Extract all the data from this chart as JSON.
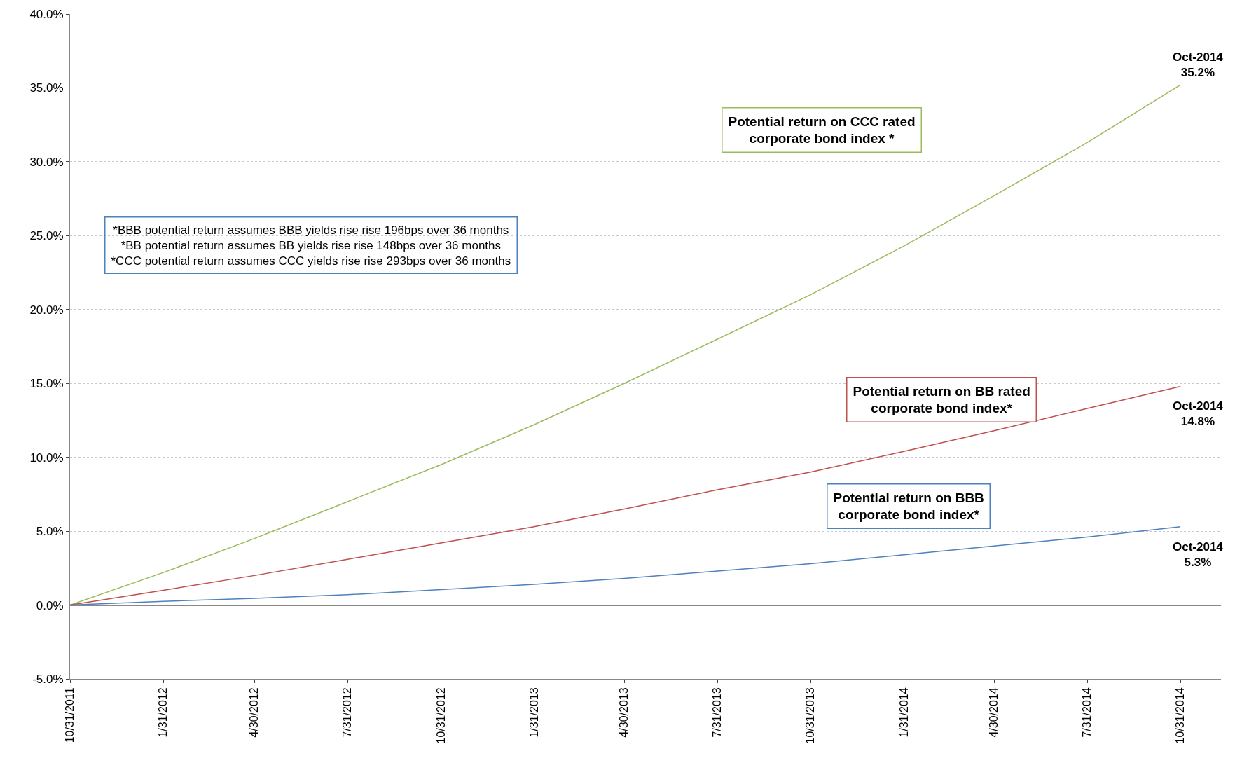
{
  "chart_data": {
    "type": "line",
    "x": [
      "2011-10-31",
      "2012-01-31",
      "2012-04-30",
      "2012-07-31",
      "2012-10-31",
      "2013-01-31",
      "2013-04-30",
      "2013-07-31",
      "2013-10-31",
      "2014-01-31",
      "2014-04-30",
      "2014-07-31",
      "2014-10-31"
    ],
    "series": [
      {
        "name": "Potential return on CCC rated\ncorporate bond index *",
        "color": "#9bbb59",
        "values": [
          0,
          2.2,
          4.5,
          7.0,
          9.5,
          12.2,
          15.0,
          18.0,
          21.0,
          24.3,
          27.7,
          31.3,
          35.2
        ]
      },
      {
        "name": "Potential return on BB rated\ncorporate bond index*",
        "color": "#c0504d",
        "values": [
          0,
          1.0,
          2.0,
          3.1,
          4.2,
          5.3,
          6.5,
          7.8,
          9.0,
          10.4,
          11.8,
          13.3,
          14.8
        ]
      },
      {
        "name": "Potential return on BBB\ncorporate bond index*",
        "color": "#4f81bd",
        "values": [
          0,
          0.25,
          0.45,
          0.7,
          1.05,
          1.4,
          1.8,
          2.3,
          2.8,
          3.4,
          4.0,
          4.6,
          5.3
        ]
      }
    ],
    "ylim": [
      -5,
      40
    ],
    "yticks": [
      {
        "value": -5,
        "label": "-5.0%"
      },
      {
        "value": 0,
        "label": "0.0%"
      },
      {
        "value": 5,
        "label": "5.0%"
      },
      {
        "value": 10,
        "label": "10.0%"
      },
      {
        "value": 15,
        "label": "15.0%"
      },
      {
        "value": 20,
        "label": "20.0%"
      },
      {
        "value": 25,
        "label": "25.0%"
      },
      {
        "value": 30,
        "label": "30.0%"
      },
      {
        "value": 35,
        "label": "35.0%"
      },
      {
        "value": 40,
        "label": "40.0%"
      }
    ],
    "xlim": [
      "2011-10-31",
      "2014-12-10"
    ],
    "xticks": [
      {
        "value": "2011-10-31",
        "label": "10/31/2011"
      },
      {
        "value": "2012-01-31",
        "label": "1/31/2012"
      },
      {
        "value": "2012-04-30",
        "label": "4/30/2012"
      },
      {
        "value": "2012-07-31",
        "label": "7/31/2012"
      },
      {
        "value": "2012-10-31",
        "label": "10/31/2012"
      },
      {
        "value": "2013-01-31",
        "label": "1/31/2013"
      },
      {
        "value": "2013-04-30",
        "label": "4/30/2013"
      },
      {
        "value": "2013-07-31",
        "label": "7/31/2013"
      },
      {
        "value": "2013-10-31",
        "label": "10/31/2013"
      },
      {
        "value": "2014-01-31",
        "label": "1/31/2014"
      },
      {
        "value": "2014-04-30",
        "label": "4/30/2014"
      },
      {
        "value": "2014-07-31",
        "label": "7/31/2014"
      },
      {
        "value": "2014-10-31",
        "label": "10/31/2014"
      }
    ],
    "grid": "y",
    "legend": false,
    "marker": "none",
    "line_style": "solid",
    "annotations": [
      "*BBB potential return assumes BBB yields rise rise 196bps over 36 months\n*BB potential return assumes BB yields rise rise 148bps over 36 months\n*CCC potential return assumes CCC yields rise rise 293bps over 36 months",
      {
        "text": "Oct-2014\n35.2%",
        "x": "2014-10-31",
        "y": 35.2
      },
      {
        "text": "Oct-2014\n14.8%",
        "x": "2014-10-31",
        "y": 14.8
      },
      {
        "text": "Oct-2014\n5.3%",
        "x": "2014-10-31",
        "y": 5.3
      }
    ]
  }
}
